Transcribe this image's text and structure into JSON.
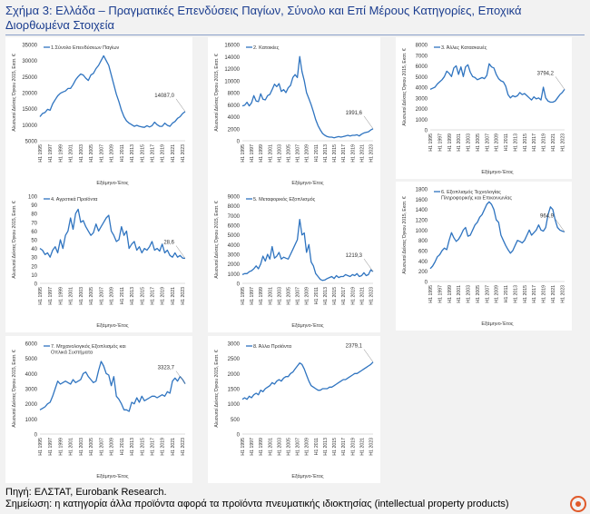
{
  "title": "Σχήμα 3: Ελλάδα – Πραγματικές Επενδύσεις Παγίων, Σύνολο και Επί Μέρους Κατηγορίες, Εποχικά Διορθωμένα Στοιχεία",
  "source": "Πηγή: ΕΛΣΤΑΤ, Eurobank Research.",
  "note": "Σημείωση: η κατηγορία άλλα προϊόντα αφορά τα προϊόντα πνευματικής ιδιοκτησίας (intellectual property products)",
  "ylabel": "Αλυσωτοί Δείκτες Όγκου 2015, Εκατ. €",
  "xlabel": "Εξάμηνο-Έτος",
  "line_color": "#2f74c0",
  "x_ticks": [
    "H1 1995",
    "H1 1997",
    "H1 1999",
    "H1 2001",
    "H1 2003",
    "H1 2005",
    "H1 2007",
    "H1 2009",
    "H1 2011",
    "H1 2013",
    "H1 2015",
    "H1 2017",
    "H1 2019",
    "H1 2021",
    "H1 2023"
  ],
  "chart_data": [
    {
      "type": "line",
      "legend": "1.Σύνολο Επενδύσεων Παγίων",
      "ylim": [
        5000,
        35000
      ],
      "yticks": [
        5000,
        10000,
        15000,
        20000,
        25000,
        30000,
        35000
      ],
      "annotation": "14087,0",
      "x": [
        "H1 1995",
        "H2 1995",
        "H1 1996",
        "H2 1996",
        "H1 1997",
        "H2 1997",
        "H1 1998",
        "H2 1998",
        "H1 1999",
        "H2 1999",
        "H1 2000",
        "H2 2000",
        "H1 2001",
        "H2 2001",
        "H1 2002",
        "H2 2002",
        "H1 2003",
        "H2 2003",
        "H1 2004",
        "H2 2004",
        "H1 2005",
        "H2 2005",
        "H1 2006",
        "H2 2006",
        "H1 2007",
        "H2 2007",
        "H1 2008",
        "H2 2008",
        "H1 2009",
        "H2 2009",
        "H1 2010",
        "H2 2010",
        "H1 2011",
        "H2 2011",
        "H1 2012",
        "H2 2012",
        "H1 2013",
        "H2 2013",
        "H1 2014",
        "H2 2014",
        "H1 2015",
        "H2 2015",
        "H1 2016",
        "H2 2016",
        "H1 2017",
        "H2 2017",
        "H1 2018",
        "H2 2018",
        "H1 2019",
        "H2 2019",
        "H1 2020",
        "H2 2020",
        "H1 2021",
        "H2 2021",
        "H1 2022",
        "H2 2022",
        "H1 2023",
        "H2 2023"
      ],
      "values": [
        12500,
        13500,
        13800,
        14800,
        14500,
        16500,
        17800,
        19000,
        19800,
        20200,
        20500,
        21300,
        21300,
        22500,
        24000,
        25000,
        25800,
        25500,
        24500,
        23800,
        25500,
        26000,
        27500,
        28500,
        30000,
        31500,
        30000,
        28500,
        25500,
        22500,
        19500,
        17200,
        14500,
        12500,
        11200,
        10500,
        10000,
        9500,
        9800,
        9500,
        9300,
        9200,
        9700,
        9300,
        9700,
        10800,
        10000,
        9500,
        9500,
        10500,
        9800,
        9500,
        10500,
        11000,
        12000,
        12500,
        13500,
        14087
      ]
    },
    {
      "type": "line",
      "legend": "2. Κατοικίες",
      "ylim": [
        0,
        16000
      ],
      "yticks": [
        0,
        2000,
        4000,
        6000,
        8000,
        10000,
        12000,
        14000,
        16000
      ],
      "annotation": "1991,6",
      "x": [
        "H1 1995",
        "H2 1995",
        "H1 1996",
        "H2 1996",
        "H1 1997",
        "H2 1997",
        "H1 1998",
        "H2 1998",
        "H1 1999",
        "H2 1999",
        "H1 2000",
        "H2 2000",
        "H1 2001",
        "H2 2001",
        "H1 2002",
        "H2 2002",
        "H1 2003",
        "H2 2003",
        "H1 2004",
        "H2 2004",
        "H1 2005",
        "H2 2005",
        "H1 2006",
        "H2 2006",
        "H1 2007",
        "H2 2007",
        "H1 2008",
        "H2 2008",
        "H1 2009",
        "H2 2009",
        "H1 2010",
        "H2 2010",
        "H1 2011",
        "H2 2011",
        "H1 2012",
        "H2 2012",
        "H1 2013",
        "H2 2013",
        "H1 2014",
        "H2 2014",
        "H1 2015",
        "H2 2015",
        "H1 2016",
        "H2 2016",
        "H1 2017",
        "H2 2017",
        "H1 2018",
        "H2 2018",
        "H1 2019",
        "H2 2019",
        "H1 2020",
        "H2 2020",
        "H1 2021",
        "H2 2021",
        "H1 2022",
        "H2 2022",
        "H1 2023",
        "H2 2023"
      ],
      "values": [
        5800,
        5900,
        6400,
        5800,
        6300,
        7500,
        6600,
        6500,
        7800,
        6900,
        6800,
        7500,
        7700,
        8500,
        9400,
        9000,
        9500,
        8200,
        8500,
        8000,
        8800,
        9200,
        10500,
        11000,
        10500,
        14000,
        11500,
        10000,
        8000,
        7000,
        6000,
        4800,
        3500,
        2500,
        1800,
        1200,
        900,
        700,
        600,
        600,
        500,
        600,
        700,
        600,
        700,
        800,
        900,
        800,
        900,
        900,
        1000,
        800,
        1100,
        1300,
        1400,
        1500,
        1800,
        1992
      ]
    },
    {
      "type": "line",
      "legend": "3. Άλλες Κατασκευές",
      "ylim": [
        0,
        8000
      ],
      "yticks": [
        0,
        1000,
        2000,
        3000,
        4000,
        5000,
        6000,
        7000,
        8000
      ],
      "annotation": "3794,2",
      "x": [
        "H1 1995",
        "H2 1995",
        "H1 1996",
        "H2 1996",
        "H1 1997",
        "H2 1997",
        "H1 1998",
        "H2 1998",
        "H1 1999",
        "H2 1999",
        "H1 2000",
        "H2 2000",
        "H1 2001",
        "H2 2001",
        "H1 2002",
        "H2 2002",
        "H1 2003",
        "H2 2003",
        "H1 2004",
        "H2 2004",
        "H1 2005",
        "H2 2005",
        "H1 2006",
        "H2 2006",
        "H1 2007",
        "H2 2007",
        "H1 2008",
        "H2 2008",
        "H1 2009",
        "H2 2009",
        "H1 2010",
        "H2 2010",
        "H1 2011",
        "H2 2011",
        "H1 2012",
        "H2 2012",
        "H1 2013",
        "H2 2013",
        "H1 2014",
        "H2 2014",
        "H1 2015",
        "H2 2015",
        "H1 2016",
        "H2 2016",
        "H1 2017",
        "H2 2017",
        "H1 2018",
        "H2 2018",
        "H1 2019",
        "H2 2019",
        "H1 2020",
        "H2 2020",
        "H1 2021",
        "H2 2021",
        "H1 2022",
        "H2 2022",
        "H1 2023",
        "H2 2023"
      ],
      "values": [
        3800,
        3900,
        4000,
        4300,
        4500,
        4700,
        5000,
        5500,
        5300,
        5000,
        5800,
        6000,
        5200,
        5900,
        5000,
        5900,
        6100,
        5400,
        5000,
        4900,
        4700,
        4800,
        4900,
        4800,
        5100,
        6200,
        5900,
        5800,
        5200,
        4800,
        4600,
        4500,
        4100,
        3300,
        3000,
        3200,
        3100,
        3200,
        3500,
        3300,
        3400,
        3200,
        3000,
        2800,
        3100,
        2900,
        3000,
        2800,
        4000,
        3000,
        2700,
        2600,
        2600,
        2700,
        3000,
        3300,
        3500,
        3794
      ]
    },
    {
      "type": "line",
      "legend": "4. Αγροτικά Προϊόντα",
      "ylim": [
        0,
        100
      ],
      "yticks": [
        0,
        10,
        20,
        30,
        40,
        50,
        60,
        70,
        80,
        90,
        100
      ],
      "annotation": "28,6",
      "x": [
        "H1 1995",
        "H2 1995",
        "H1 1996",
        "H2 1996",
        "H1 1997",
        "H2 1997",
        "H1 1998",
        "H2 1998",
        "H1 1999",
        "H2 1999",
        "H1 2000",
        "H2 2000",
        "H1 2001",
        "H2 2001",
        "H1 2002",
        "H2 2002",
        "H1 2003",
        "H2 2003",
        "H1 2004",
        "H2 2004",
        "H1 2005",
        "H2 2005",
        "H1 2006",
        "H2 2006",
        "H1 2007",
        "H2 2007",
        "H1 2008",
        "H2 2008",
        "H1 2009",
        "H2 2009",
        "H1 2010",
        "H2 2010",
        "H1 2011",
        "H2 2011",
        "H1 2012",
        "H2 2012",
        "H1 2013",
        "H2 2013",
        "H1 2014",
        "H2 2014",
        "H1 2015",
        "H2 2015",
        "H1 2016",
        "H2 2016",
        "H1 2017",
        "H2 2017",
        "H1 2018",
        "H2 2018",
        "H1 2019",
        "H2 2019",
        "H1 2020",
        "H2 2020",
        "H1 2021",
        "H2 2021",
        "H1 2022",
        "H2 2022",
        "H1 2023",
        "H2 2023"
      ],
      "values": [
        40,
        38,
        33,
        35,
        30,
        38,
        42,
        35,
        50,
        40,
        55,
        60,
        75,
        62,
        80,
        85,
        70,
        72,
        65,
        60,
        55,
        58,
        68,
        60,
        65,
        70,
        75,
        78,
        60,
        55,
        48,
        50,
        65,
        55,
        60,
        40,
        45,
        48,
        38,
        42,
        35,
        40,
        38,
        42,
        48,
        38,
        40,
        37,
        45,
        35,
        38,
        32,
        30,
        35,
        30,
        32,
        29,
        28.6
      ]
    },
    {
      "type": "line",
      "legend": "5. Μεταφορικός Εξοπλισμός",
      "ylim": [
        0,
        9000
      ],
      "yticks": [
        0,
        1000,
        2000,
        3000,
        4000,
        5000,
        6000,
        7000,
        8000,
        9000
      ],
      "annotation": "1219,3",
      "x": [
        "H1 1995",
        "H2 1995",
        "H1 1996",
        "H2 1996",
        "H1 1997",
        "H2 1997",
        "H1 1998",
        "H2 1998",
        "H1 1999",
        "H2 1999",
        "H1 2000",
        "H2 2000",
        "H1 2001",
        "H2 2001",
        "H1 2002",
        "H2 2002",
        "H1 2003",
        "H2 2003",
        "H1 2004",
        "H2 2004",
        "H1 2005",
        "H2 2005",
        "H1 2006",
        "H2 2006",
        "H1 2007",
        "H2 2007",
        "H1 2008",
        "H2 2008",
        "H1 2009",
        "H2 2009",
        "H1 2010",
        "H2 2010",
        "H1 2011",
        "H2 2011",
        "H1 2012",
        "H2 2012",
        "H1 2013",
        "H2 2013",
        "H1 2014",
        "H2 2014",
        "H1 2015",
        "H2 2015",
        "H1 2016",
        "H2 2016",
        "H1 2017",
        "H2 2017",
        "H1 2018",
        "H2 2018",
        "H1 2019",
        "H2 2019",
        "H1 2020",
        "H2 2020",
        "H1 2021",
        "H2 2021",
        "H1 2022",
        "H2 2022",
        "H1 2023",
        "H2 2023"
      ],
      "values": [
        900,
        1000,
        1000,
        1200,
        1300,
        1500,
        1800,
        1500,
        2000,
        2800,
        2300,
        3000,
        2500,
        3800,
        2600,
        2800,
        3200,
        2500,
        2700,
        2600,
        2500,
        3000,
        3500,
        4000,
        4500,
        6600,
        5000,
        5200,
        3200,
        4000,
        2200,
        1800,
        1000,
        700,
        400,
        300,
        350,
        500,
        600,
        700,
        500,
        800,
        600,
        700,
        700,
        900,
        800,
        700,
        900,
        800,
        1000,
        700,
        800,
        1100,
        800,
        900,
        1400,
        1219
      ]
    },
    {
      "type": "line",
      "legend": "6. Εξοπλισμός Τεχνολογίας Πληροφορικής και Επικοινωνίας",
      "ylim": [
        0,
        1800
      ],
      "yticks": [
        0,
        200,
        400,
        600,
        800,
        1000,
        1200,
        1400,
        1600,
        1800
      ],
      "annotation": "964,9",
      "x": [
        "H1 1995",
        "H2 1995",
        "H1 1996",
        "H2 1996",
        "H1 1997",
        "H2 1997",
        "H1 1998",
        "H2 1998",
        "H1 1999",
        "H2 1999",
        "H1 2000",
        "H2 2000",
        "H1 2001",
        "H2 2001",
        "H1 2002",
        "H2 2002",
        "H1 2003",
        "H2 2003",
        "H1 2004",
        "H2 2004",
        "H1 2005",
        "H2 2005",
        "H1 2006",
        "H2 2006",
        "H1 2007",
        "H2 2007",
        "H1 2008",
        "H2 2008",
        "H1 2009",
        "H2 2009",
        "H1 2010",
        "H2 2010",
        "H1 2011",
        "H2 2011",
        "H1 2012",
        "H2 2012",
        "H1 2013",
        "H2 2013",
        "H1 2014",
        "H2 2014",
        "H1 2015",
        "H2 2015",
        "H1 2016",
        "H2 2016",
        "H1 2017",
        "H2 2017",
        "H1 2018",
        "H2 2018",
        "H1 2019",
        "H2 2019",
        "H1 2020",
        "H2 2020",
        "H1 2021",
        "H2 2021",
        "H1 2022",
        "H2 2022",
        "H1 2023",
        "H2 2023"
      ],
      "values": [
        250,
        300,
        380,
        480,
        520,
        600,
        650,
        620,
        800,
        950,
        850,
        780,
        820,
        900,
        1000,
        1050,
        880,
        900,
        1000,
        1100,
        1150,
        1250,
        1300,
        1400,
        1500,
        1550,
        1500,
        1400,
        1200,
        1150,
        900,
        800,
        700,
        620,
        550,
        600,
        700,
        800,
        780,
        750,
        800,
        900,
        1000,
        900,
        950,
        1000,
        1100,
        1000,
        980,
        1050,
        1300,
        1450,
        1400,
        1200,
        1050,
        1000,
        980,
        965
      ]
    },
    {
      "type": "line",
      "legend": "7. Μηχανολογικός Εξοπλισμός και Οπλικά Συστήματα",
      "ylim": [
        0,
        6000
      ],
      "yticks": [
        0,
        1000,
        2000,
        3000,
        4000,
        5000,
        6000
      ],
      "annotation": "3323,7",
      "x": [
        "H1 1995",
        "H2 1995",
        "H1 1996",
        "H2 1996",
        "H1 1997",
        "H2 1997",
        "H1 1998",
        "H2 1998",
        "H1 1999",
        "H2 1999",
        "H1 2000",
        "H2 2000",
        "H1 2001",
        "H2 2001",
        "H1 2002",
        "H2 2002",
        "H1 2003",
        "H2 2003",
        "H1 2004",
        "H2 2004",
        "H1 2005",
        "H2 2005",
        "H1 2006",
        "H2 2006",
        "H1 2007",
        "H2 2007",
        "H1 2008",
        "H2 2008",
        "H1 2009",
        "H2 2009",
        "H1 2010",
        "H2 2010",
        "H1 2011",
        "H2 2011",
        "H1 2012",
        "H2 2012",
        "H1 2013",
        "H2 2013",
        "H1 2014",
        "H2 2014",
        "H1 2015",
        "H2 2015",
        "H1 2016",
        "H2 2016",
        "H1 2017",
        "H2 2017",
        "H1 2018",
        "H2 2018",
        "H1 2019",
        "H2 2019",
        "H1 2020",
        "H2 2020",
        "H1 2021",
        "H2 2021",
        "H1 2022",
        "H2 2022",
        "H1 2023",
        "H2 2023"
      ],
      "values": [
        1600,
        1700,
        1800,
        2000,
        2100,
        2500,
        3000,
        3500,
        3300,
        3400,
        3500,
        3400,
        3300,
        3600,
        3400,
        3500,
        3600,
        4000,
        4100,
        3800,
        3600,
        3400,
        3500,
        4200,
        4800,
        4500,
        4000,
        3900,
        3200,
        3800,
        2500,
        2300,
        2000,
        1600,
        1600,
        1500,
        2100,
        2000,
        2400,
        2100,
        2500,
        2200,
        2300,
        2400,
        2500,
        2500,
        2400,
        2500,
        2600,
        2500,
        2800,
        2700,
        3500,
        3700,
        3500,
        3800,
        3600,
        3324
      ]
    },
    {
      "type": "line",
      "legend": "8. Άλλα Προϊόντα",
      "ylim": [
        0,
        3000
      ],
      "yticks": [
        0,
        500,
        1000,
        1500,
        2000,
        2500,
        3000
      ],
      "annotation": "2379,1",
      "x": [
        "H1 1995",
        "H2 1995",
        "H1 1996",
        "H2 1996",
        "H1 1997",
        "H2 1997",
        "H1 1998",
        "H2 1998",
        "H1 1999",
        "H2 1999",
        "H1 2000",
        "H2 2000",
        "H1 2001",
        "H2 2001",
        "H1 2002",
        "H2 2002",
        "H1 2003",
        "H2 2003",
        "H1 2004",
        "H2 2004",
        "H1 2005",
        "H2 2005",
        "H1 2006",
        "H2 2006",
        "H1 2007",
        "H2 2007",
        "H1 2008",
        "H2 2008",
        "H1 2009",
        "H2 2009",
        "H1 2010",
        "H2 2010",
        "H1 2011",
        "H2 2011",
        "H1 2012",
        "H2 2012",
        "H1 2013",
        "H2 2013",
        "H1 2014",
        "H2 2014",
        "H1 2015",
        "H2 2015",
        "H1 2016",
        "H2 2016",
        "H1 2017",
        "H2 2017",
        "H1 2018",
        "H2 2018",
        "H1 2019",
        "H2 2019",
        "H1 2020",
        "H2 2020",
        "H1 2021",
        "H2 2021",
        "H1 2022",
        "H2 2022",
        "H1 2023",
        "H2 2023"
      ],
      "values": [
        1150,
        1200,
        1150,
        1250,
        1200,
        1300,
        1350,
        1300,
        1450,
        1400,
        1500,
        1550,
        1600,
        1700,
        1650,
        1750,
        1800,
        1750,
        1850,
        1900,
        1900,
        2000,
        2050,
        2150,
        2250,
        2350,
        2300,
        2150,
        1950,
        1750,
        1600,
        1550,
        1500,
        1450,
        1450,
        1500,
        1500,
        1500,
        1550,
        1550,
        1600,
        1650,
        1700,
        1750,
        1800,
        1800,
        1850,
        1900,
        1950,
        2000,
        2000,
        2050,
        2100,
        2150,
        2200,
        2250,
        2300,
        2379
      ]
    }
  ]
}
